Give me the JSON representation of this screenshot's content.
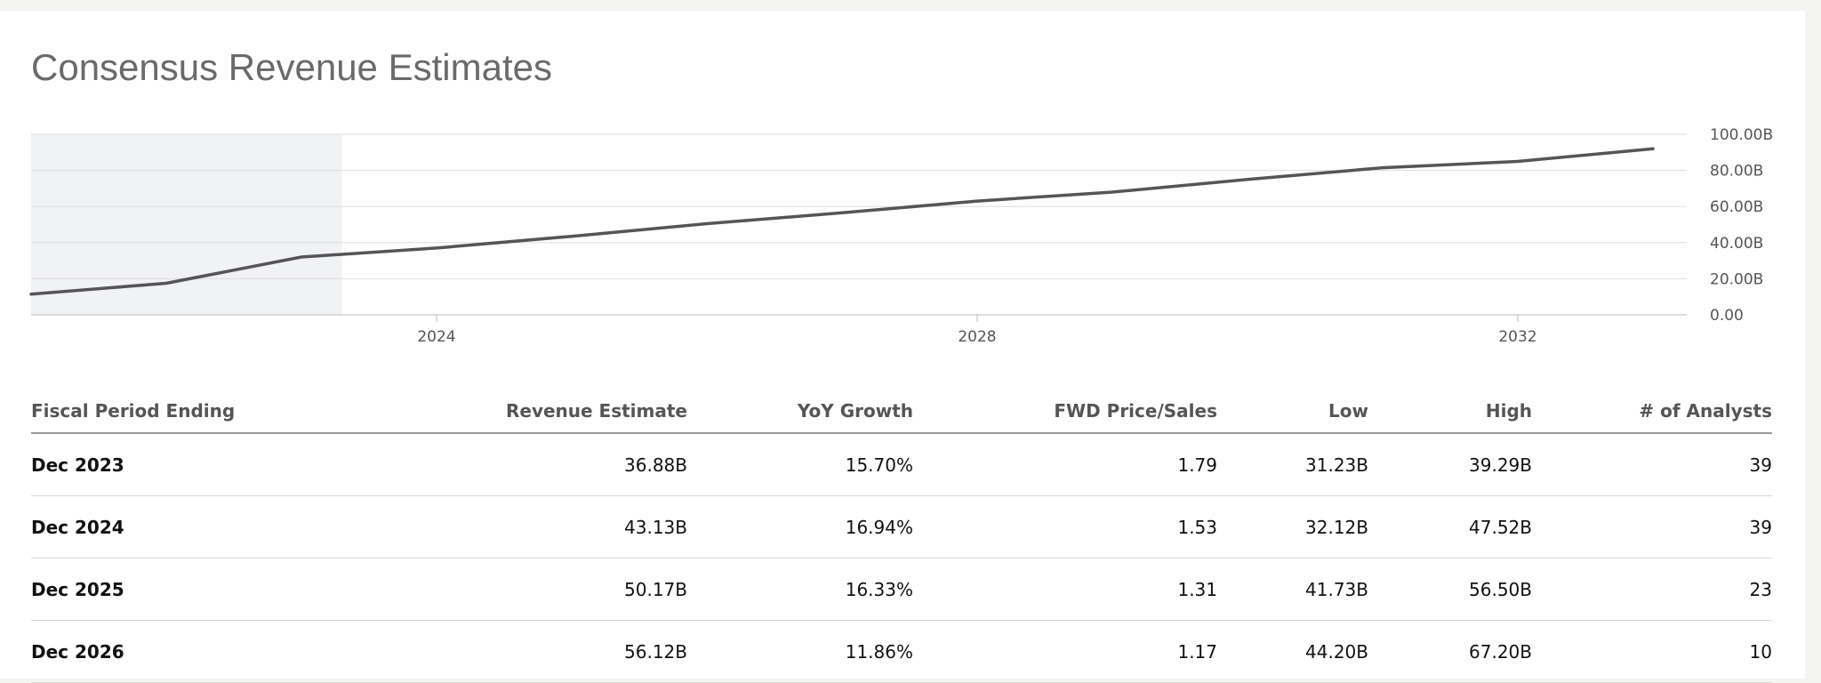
{
  "page": {
    "title": "Consensus Revenue Estimates"
  },
  "chart_data": {
    "type": "line",
    "title": "",
    "xlabel": "",
    "ylabel": "",
    "x_ticks": [
      "2024",
      "2028",
      "2032"
    ],
    "y_ticks": [
      "0.00",
      "20.00B",
      "40.00B",
      "60.00B",
      "80.00B",
      "100.00B"
    ],
    "ylim": [
      0,
      100
    ],
    "y_unit": "B",
    "grid": true,
    "shaded_region": {
      "from": 2021.0,
      "to": 2023.3,
      "color": "#f1f2f6"
    },
    "line_color": "#555555",
    "series": [
      {
        "x": [
          2021.0,
          2022.0,
          2023.0,
          2024.0,
          2025.0,
          2026.0,
          2027.0,
          2028.0,
          2029.0,
          2030.0,
          2031.0,
          2032.0,
          2033.0
        ],
        "values": [
          11.5,
          17.5,
          32.0,
          37.0,
          43.5,
          50.5,
          56.5,
          63.0,
          68.0,
          75.0,
          81.5,
          85.0,
          92.0
        ]
      }
    ]
  },
  "table": {
    "headers": [
      "Fiscal Period Ending",
      "Revenue Estimate",
      "YoY Growth",
      "FWD Price/Sales",
      "Low",
      "High",
      "# of Analysts"
    ],
    "rows": [
      [
        "Dec 2023",
        "36.88B",
        "15.70%",
        "1.79",
        "31.23B",
        "39.29B",
        "39"
      ],
      [
        "Dec 2024",
        "43.13B",
        "16.94%",
        "1.53",
        "32.12B",
        "47.52B",
        "39"
      ],
      [
        "Dec 2025",
        "50.17B",
        "16.33%",
        "1.31",
        "41.73B",
        "56.50B",
        "23"
      ],
      [
        "Dec 2026",
        "56.12B",
        "11.86%",
        "1.17",
        "44.20B",
        "67.20B",
        "10"
      ]
    ]
  }
}
